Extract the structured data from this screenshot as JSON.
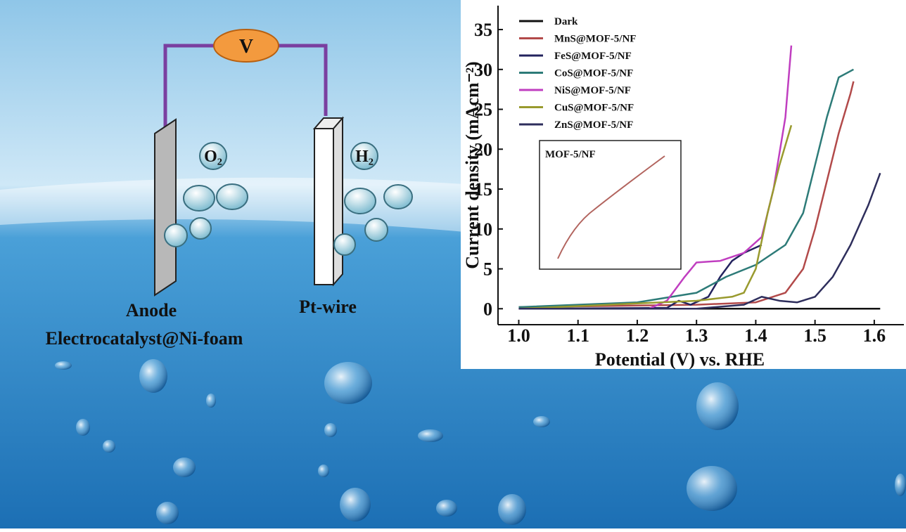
{
  "diagram": {
    "voltmeter": "V",
    "gas_left": "O₂",
    "gas_right": "H₂",
    "anode": "Anode",
    "cathode": "Pt-wire",
    "electrode": "Electrocatalyst@Ni-foam",
    "inset_label": "MOF-5/NF"
  },
  "chart_data": {
    "type": "line",
    "x_label": "Potential (V) vs. RHE",
    "y_label": "Current density (mAcm⁻²)",
    "xlim": [
      0.965,
      1.65
    ],
    "ylim": [
      -2,
      38
    ],
    "xticks": [
      {
        "value": 1,
        "label": "1.0"
      },
      1.1,
      1.2,
      1.3,
      1.4,
      1.5,
      1.6
    ],
    "yticks": [
      0,
      5,
      10,
      15,
      20,
      25,
      30,
      35
    ],
    "series": [
      {
        "name": "Dark",
        "color": "#111111",
        "x": [
          1.0,
          1.61
        ],
        "values": [
          0,
          0
        ]
      },
      {
        "name": "MnS@MOF-5/NF",
        "color": "#b24a4a",
        "x": [
          1.0,
          1.3,
          1.4,
          1.45,
          1.48,
          1.5,
          1.52,
          1.54,
          1.56,
          1.565
        ],
        "values": [
          0.2,
          0.5,
          0.8,
          2,
          5,
          10,
          16,
          22,
          27,
          28.5
        ]
      },
      {
        "name": "FeS@MOF-5/NF",
        "color": "#23235e",
        "x": [
          1.0,
          1.25,
          1.27,
          1.29,
          1.32,
          1.34,
          1.36,
          1.38,
          1.41
        ],
        "values": [
          0,
          0.1,
          1,
          0.5,
          1.5,
          4,
          6,
          7,
          8
        ]
      },
      {
        "name": "CoS@MOF-5/NF",
        "color": "#2d7b78",
        "x": [
          1.0,
          1.2,
          1.3,
          1.35,
          1.4,
          1.45,
          1.48,
          1.5,
          1.52,
          1.54,
          1.565
        ],
        "values": [
          0.2,
          0.8,
          2,
          4,
          5.5,
          8,
          12,
          18,
          24,
          29,
          30
        ]
      },
      {
        "name": "NiS@MOF-5/NF",
        "color": "#c03ec0",
        "x": [
          1.0,
          1.22,
          1.25,
          1.28,
          1.3,
          1.34,
          1.38,
          1.41,
          1.43,
          1.45,
          1.46
        ],
        "values": [
          0,
          0,
          1,
          4,
          5.8,
          6,
          7,
          9,
          15,
          24,
          33
        ]
      },
      {
        "name": "CuS@MOF-5/NF",
        "color": "#999a2e",
        "x": [
          1.0,
          1.3,
          1.36,
          1.38,
          1.4,
          1.42,
          1.44,
          1.46
        ],
        "values": [
          0,
          1,
          1.5,
          2,
          5,
          12,
          18,
          23
        ]
      },
      {
        "name": "ZnS@MOF-5/NF",
        "color": "#2e2e5c",
        "x": [
          1.0,
          1.3,
          1.38,
          1.41,
          1.44,
          1.47,
          1.5,
          1.53,
          1.56,
          1.59,
          1.61
        ],
        "values": [
          0,
          0,
          0.5,
          1.5,
          1,
          0.8,
          1.5,
          4,
          8,
          13,
          17
        ]
      }
    ]
  }
}
